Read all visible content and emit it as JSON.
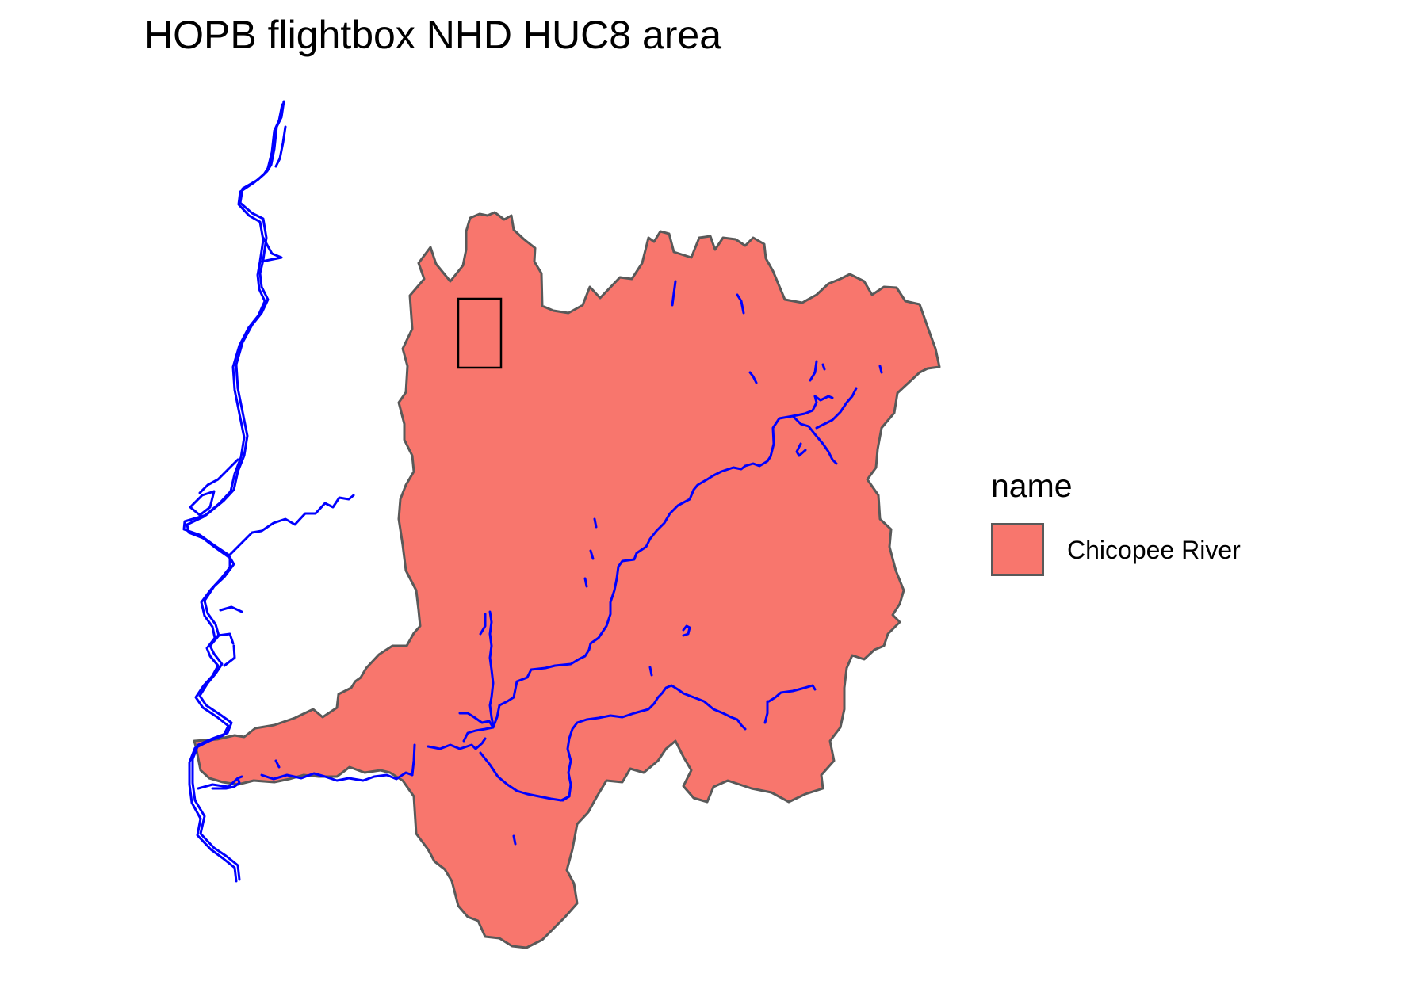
{
  "title": "HOPB flightbox NHD HUC8 area",
  "legend": {
    "title": "name",
    "entries": [
      {
        "label": "Chicopee River",
        "color": "#F8766D"
      }
    ]
  },
  "colors": {
    "watershed_fill": "#F8766D",
    "watershed_outline": "#595959",
    "flowlines": "#0000FF",
    "flightbox_outline": "#000000"
  }
}
